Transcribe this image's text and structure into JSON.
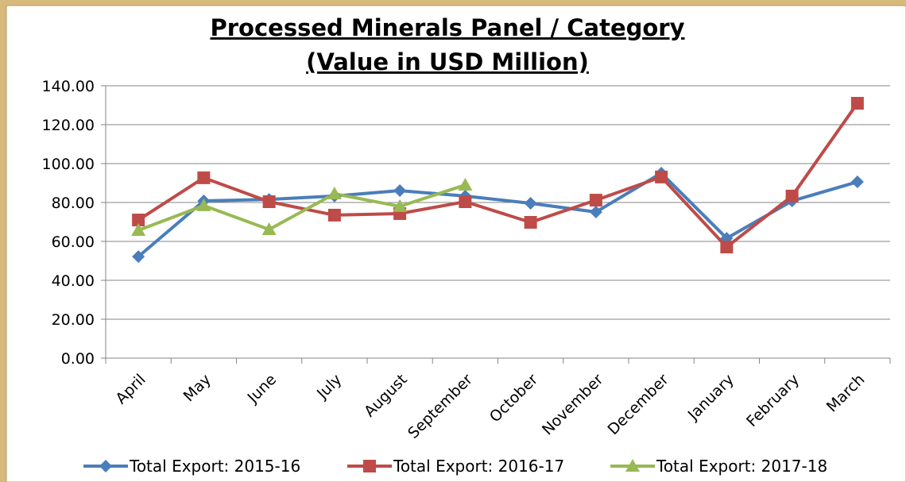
{
  "chart_data": {
    "type": "line",
    "title": "Processed Minerals Panel / Category",
    "subtitle": "(Value in USD Million)",
    "categories": [
      "April",
      "May",
      "June",
      "July",
      "August",
      "September",
      "October",
      "November",
      "December",
      "January",
      "February",
      "March"
    ],
    "series": [
      {
        "name": "Total Export: 2015-16",
        "color": "#4a7ebb",
        "marker": "diamond",
        "values": [
          52.2,
          80.8,
          81.6,
          83.3,
          86.1,
          83.3,
          79.6,
          75.1,
          95.1,
          61.6,
          80.8,
          90.6
        ]
      },
      {
        "name": "Total Export: 2016-17",
        "color": "#be4b48",
        "marker": "square",
        "values": [
          71.0,
          92.7,
          80.4,
          73.5,
          74.3,
          80.4,
          69.8,
          81.2,
          93.1,
          57.1,
          83.3,
          131.0
        ]
      },
      {
        "name": "Total Export: 2017-18",
        "color": "#98b954",
        "marker": "triangle",
        "values": [
          65.7,
          78.4,
          66.1,
          84.5,
          78.0,
          89.0,
          null,
          null,
          null,
          null,
          null,
          null
        ]
      }
    ],
    "ylim": [
      0,
      140
    ],
    "yticks": [
      {
        "value": 0,
        "label": "0.00"
      },
      {
        "value": 20,
        "label": "20.00"
      },
      {
        "value": 40,
        "label": "40.00"
      },
      {
        "value": 60,
        "label": "60.00"
      },
      {
        "value": 80,
        "label": "80.00"
      },
      {
        "value": 100,
        "label": "100.00"
      },
      {
        "value": 120,
        "label": "120.00"
      },
      {
        "value": 140,
        "label": "140.00"
      }
    ],
    "grid": true,
    "legend": "bottom"
  }
}
